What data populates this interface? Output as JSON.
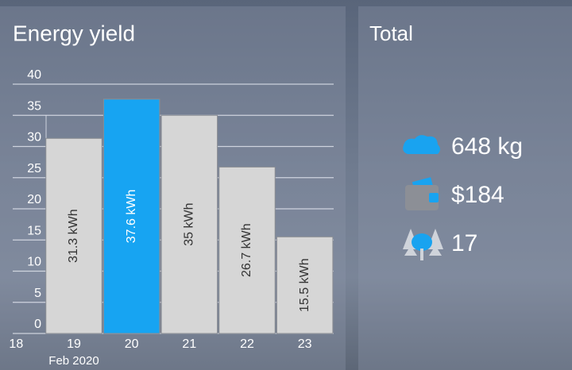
{
  "chart_data": {
    "type": "bar",
    "title": "Energy yield",
    "x": [
      19,
      20,
      21,
      22,
      23
    ],
    "values": [
      31.3,
      37.6,
      35,
      26.7,
      15.5
    ],
    "value_labels": [
      "31.3 kWh",
      "37.6 kWh",
      "35 kWh",
      "26.7 kWh",
      "15.5 kWh"
    ],
    "colors": [
      "#d6d6d6",
      "#17a4f2",
      "#d6d6d6",
      "#d6d6d6",
      "#d6d6d6"
    ],
    "xlim": [
      17.5,
      23.5
    ],
    "xticks": [
      18,
      19,
      20,
      21,
      22,
      23
    ],
    "x_annotation": "Feb 2020",
    "ylim": [
      0,
      40
    ],
    "yticks": [
      0,
      5,
      10,
      15,
      20,
      25,
      30,
      35,
      40
    ],
    "grid": true
  },
  "total": {
    "title": "Total",
    "items": [
      "648 kg",
      "$184",
      "17"
    ]
  }
}
